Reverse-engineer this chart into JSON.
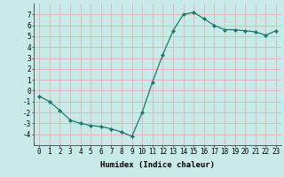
{
  "x": [
    0,
    1,
    2,
    3,
    4,
    5,
    6,
    7,
    8,
    9,
    10,
    11,
    12,
    13,
    14,
    15,
    16,
    17,
    18,
    19,
    20,
    21,
    22,
    23
  ],
  "y": [
    -0.5,
    -1.0,
    -1.8,
    -2.7,
    -3.0,
    -3.2,
    -3.3,
    -3.5,
    -3.8,
    -4.2,
    -2.0,
    0.8,
    3.3,
    5.5,
    7.0,
    7.2,
    6.6,
    6.0,
    5.6,
    5.6,
    5.5,
    5.4,
    5.1,
    5.5
  ],
  "line_color": "#1a7a6e",
  "marker": "D",
  "marker_size": 2.0,
  "bg_color": "#c8eae8",
  "grid_color": "#e8b0b0",
  "xlabel": "Humidex (Indice chaleur)",
  "xlim": [
    -0.5,
    23.5
  ],
  "ylim": [
    -5,
    8
  ],
  "yticks": [
    -4,
    -3,
    -2,
    -1,
    0,
    1,
    2,
    3,
    4,
    5,
    6,
    7
  ],
  "xticks": [
    0,
    1,
    2,
    3,
    4,
    5,
    6,
    7,
    8,
    9,
    10,
    11,
    12,
    13,
    14,
    15,
    16,
    17,
    18,
    19,
    20,
    21,
    22,
    23
  ],
  "label_fontsize": 6.5,
  "tick_fontsize": 5.5
}
